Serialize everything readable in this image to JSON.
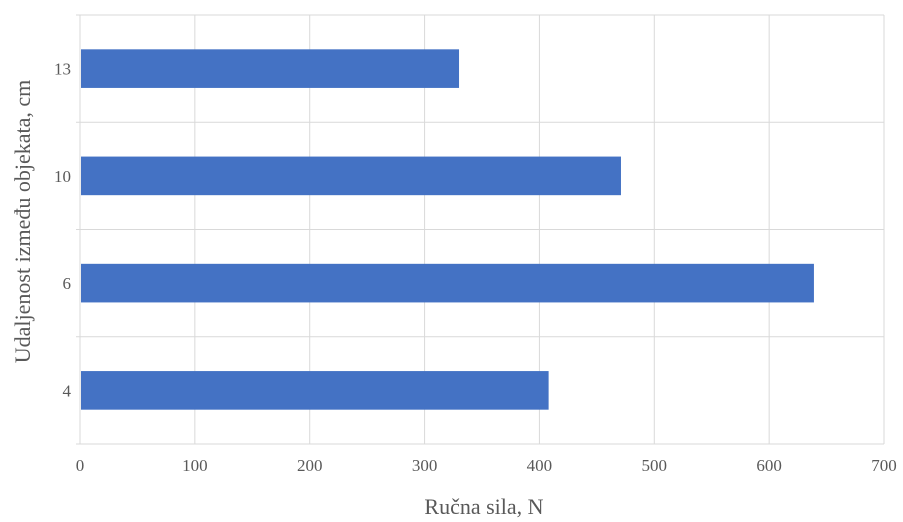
{
  "chart_data": {
    "type": "bar",
    "orientation": "horizontal",
    "categories": [
      "13",
      "10",
      "6",
      "4"
    ],
    "values": [
      330,
      471,
      639,
      408
    ],
    "title": "",
    "xlabel": "Ručna sila, N",
    "ylabel": "Udaljenost između objekata, cm",
    "xlim": [
      0,
      700
    ],
    "xticks": [
      "0",
      "100",
      "200",
      "300",
      "400",
      "500",
      "600",
      "700"
    ],
    "grid": true,
    "legend": "none",
    "colors": {
      "bar": "#4472C4",
      "grid": "#D9D9D9",
      "text": "#595959"
    }
  }
}
